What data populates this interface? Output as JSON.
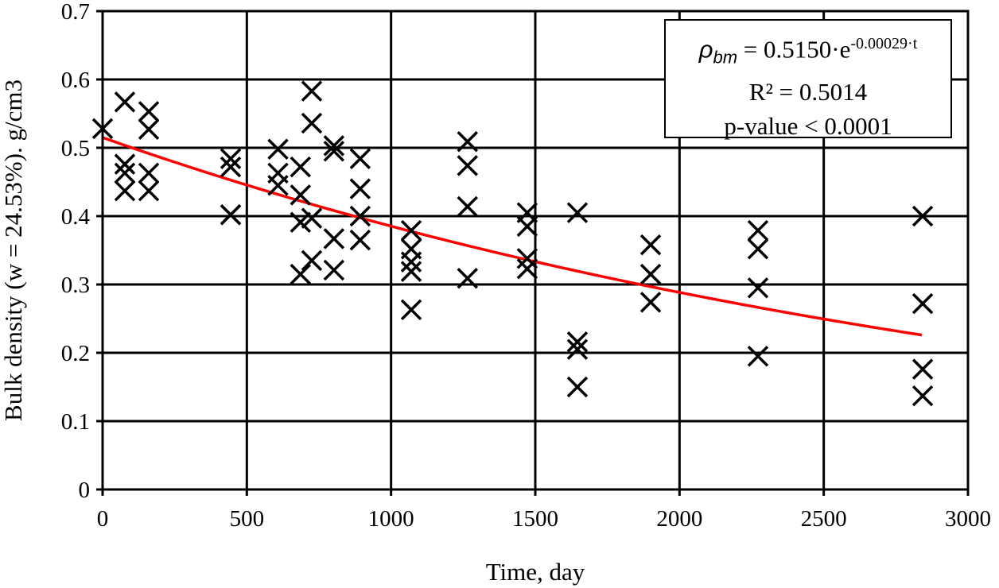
{
  "chart_data": {
    "type": "scatter",
    "xlabel": "Time, day",
    "ylabel": "Bulk density (w = 24.53%). g/cm3",
    "xlim": [
      0,
      3000
    ],
    "ylim": [
      0,
      0.7
    ],
    "xticks": [
      "0",
      "500",
      "1000",
      "1500",
      "2000",
      "2500",
      "3000"
    ],
    "yticks": [
      "0",
      "0.1",
      "0.2",
      "0.3",
      "0.4",
      "0.5",
      "0.6",
      "0.7"
    ],
    "grid": true,
    "marker": "x",
    "points": [
      [
        0,
        0.528
      ],
      [
        77,
        0.567
      ],
      [
        77,
        0.476
      ],
      [
        77,
        0.463
      ],
      [
        77,
        0.437
      ],
      [
        160,
        0.553
      ],
      [
        160,
        0.527
      ],
      [
        160,
        0.463
      ],
      [
        160,
        0.437
      ],
      [
        444,
        0.484
      ],
      [
        444,
        0.472
      ],
      [
        444,
        0.402
      ],
      [
        444,
        0.402
      ],
      [
        608,
        0.498
      ],
      [
        608,
        0.463
      ],
      [
        608,
        0.445
      ],
      [
        686,
        0.472
      ],
      [
        686,
        0.431
      ],
      [
        686,
        0.391
      ],
      [
        686,
        0.315
      ],
      [
        725,
        0.583
      ],
      [
        725,
        0.536
      ],
      [
        725,
        0.397
      ],
      [
        725,
        0.335
      ],
      [
        802,
        0.495
      ],
      [
        802,
        0.503
      ],
      [
        802,
        0.367
      ],
      [
        802,
        0.321
      ],
      [
        893,
        0.484
      ],
      [
        893,
        0.44
      ],
      [
        893,
        0.4
      ],
      [
        893,
        0.365
      ],
      [
        1070,
        0.379
      ],
      [
        1070,
        0.352
      ],
      [
        1070,
        0.333
      ],
      [
        1070,
        0.319
      ],
      [
        1070,
        0.263
      ],
      [
        1265,
        0.509
      ],
      [
        1265,
        0.474
      ],
      [
        1265,
        0.414
      ],
      [
        1265,
        0.309
      ],
      [
        1472,
        0.405
      ],
      [
        1472,
        0.385
      ],
      [
        1472,
        0.338
      ],
      [
        1472,
        0.323
      ],
      [
        1646,
        0.405
      ],
      [
        1646,
        0.216
      ],
      [
        1646,
        0.205
      ],
      [
        1646,
        0.15
      ],
      [
        1900,
        0.358
      ],
      [
        1900,
        0.315
      ],
      [
        1900,
        0.274
      ],
      [
        2272,
        0.379
      ],
      [
        2272,
        0.352
      ],
      [
        2272,
        0.295
      ],
      [
        2272,
        0.195
      ],
      [
        2843,
        0.4
      ],
      [
        2843,
        0.272
      ],
      [
        2843,
        0.176
      ],
      [
        2843,
        0.137
      ]
    ],
    "trendline": {
      "type": "exponential",
      "a": 0.515,
      "b": -0.00029,
      "x_range": [
        0,
        2843
      ],
      "color": "#ff0000"
    },
    "annotation": {
      "symbol": "ρ",
      "subscript": "bm",
      "equation_rhs": "= 0.5150·e",
      "exponent": "-0.00029·t",
      "r2": "R² = 0.5014",
      "pvalue": "p-value < 0.0001"
    }
  }
}
